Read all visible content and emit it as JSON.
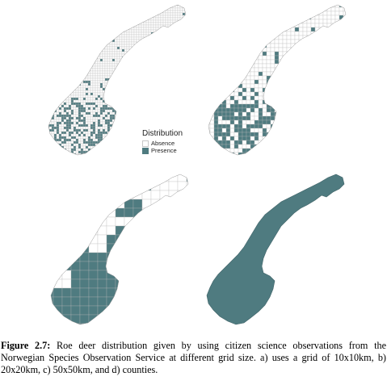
{
  "legend": {
    "title": "Distribution",
    "items": [
      {
        "label": "Absence",
        "color": "#ffffff"
      },
      {
        "label": "Presence",
        "color": "#4f7b80"
      }
    ]
  },
  "caption": {
    "label": "Figure 2.7:",
    "text": "Roe deer distribution given by using citizen science observations from the Norwegian Species Observation Service at different grid size. a) uses a grid of 10x10km, b) 20x20km, c) 50x50km, and d) counties."
  },
  "colors": {
    "presence": "#4f7b80",
    "absence": "#ffffff",
    "grid_line": "#b9b9b9"
  },
  "panels": [
    {
      "id": "a",
      "grid_size": "10x10km",
      "cell_border": true
    },
    {
      "id": "b",
      "grid_size": "20x20km",
      "cell_border": true
    },
    {
      "id": "c",
      "grid_size": "50x50km",
      "cell_border": true
    },
    {
      "id": "d",
      "grid_size": "counties",
      "cell_border": false
    }
  ]
}
